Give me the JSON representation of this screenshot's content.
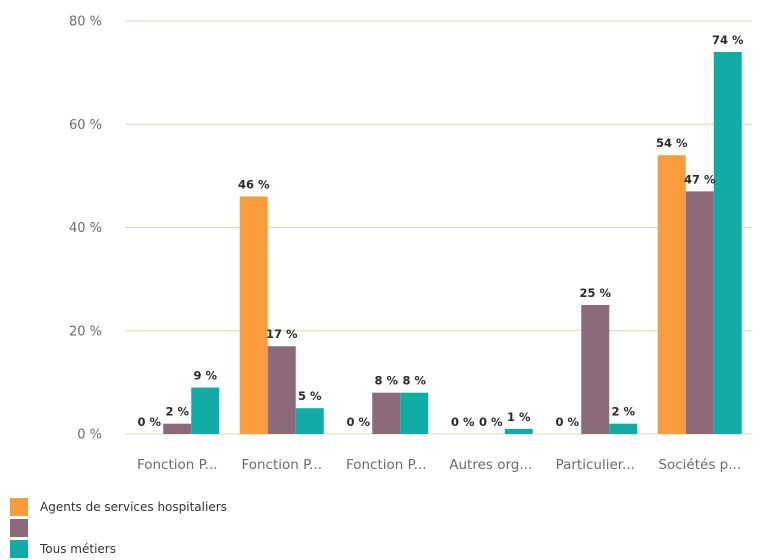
{
  "chart_data": {
    "type": "bar",
    "categories": [
      "Fonction P...",
      "Fonction P...",
      "Fonction P...",
      "Autres org...",
      "Particulier...",
      "Sociétés p..."
    ],
    "series": [
      {
        "name": "Agents de services hospitaliers",
        "color": "#f89c3e",
        "values": [
          0,
          46,
          0,
          0,
          0,
          54
        ],
        "labels": [
          "0 %",
          "46 %",
          "0 %",
          "0 %",
          "0 %",
          "54 %"
        ]
      },
      {
        "name": "",
        "color": "#8c6a7a",
        "values": [
          2,
          17,
          8,
          0,
          25,
          47
        ],
        "labels": [
          "2 %",
          "17 %",
          "8 %",
          "0 %",
          "25 %",
          "47 %"
        ]
      },
      {
        "name": "Tous métiers",
        "color": "#12aca6",
        "values": [
          9,
          5,
          8,
          1,
          2,
          74
        ],
        "labels": [
          "9 %",
          "5 %",
          "8 %",
          "1 %",
          "2 %",
          "74 %"
        ]
      }
    ],
    "yticks": [
      "0 %",
      "20 %",
      "40 %",
      "60 %",
      "80 %"
    ],
    "ylim": [
      0,
      80
    ],
    "grid": true,
    "gridColor": "#cfe0a6",
    "legendPosition": "bottom-left"
  }
}
